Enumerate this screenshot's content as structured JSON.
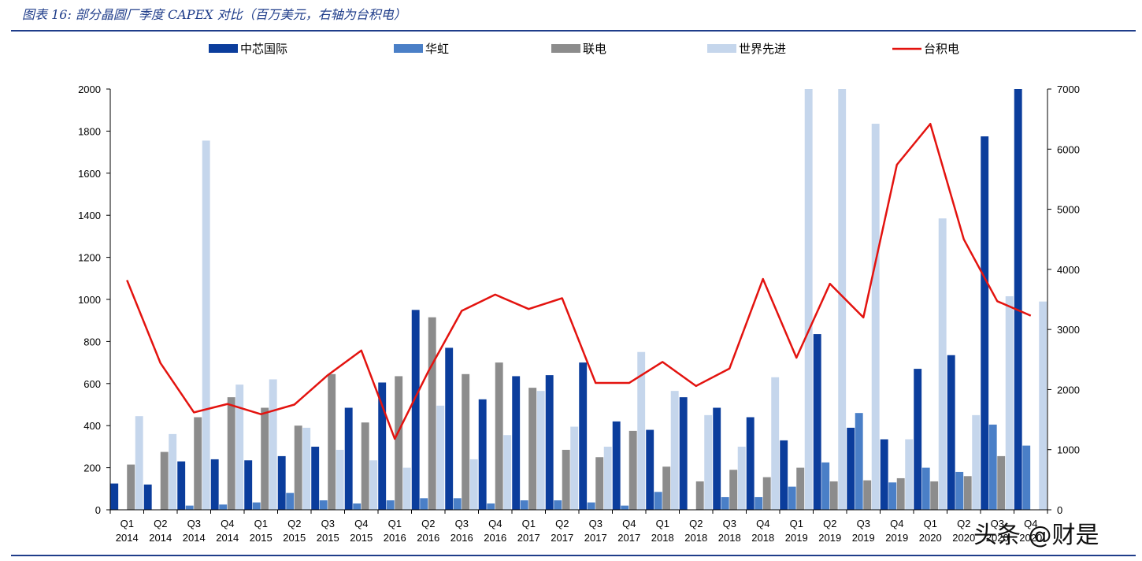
{
  "header": {
    "title": "图表 16:  部分晶圆厂季度 CAPEX 对比（百万美元，右轴为台积电）"
  },
  "watermark": "头条 @财是",
  "chart_data": {
    "type": "bar",
    "categories": [
      [
        "Q1",
        "2014"
      ],
      [
        "Q2",
        "2014"
      ],
      [
        "Q3",
        "2014"
      ],
      [
        "Q4",
        "2014"
      ],
      [
        "Q1",
        "2015"
      ],
      [
        "Q2",
        "2015"
      ],
      [
        "Q3",
        "2015"
      ],
      [
        "Q4",
        "2015"
      ],
      [
        "Q1",
        "2016"
      ],
      [
        "Q2",
        "2016"
      ],
      [
        "Q3",
        "2016"
      ],
      [
        "Q4",
        "2016"
      ],
      [
        "Q1",
        "2017"
      ],
      [
        "Q2",
        "2017"
      ],
      [
        "Q3",
        "2017"
      ],
      [
        "Q4",
        "2017"
      ],
      [
        "Q1",
        "2018"
      ],
      [
        "Q2",
        "2018"
      ],
      [
        "Q3",
        "2018"
      ],
      [
        "Q4",
        "2018"
      ],
      [
        "Q1",
        "2019"
      ],
      [
        "Q2",
        "2019"
      ],
      [
        "Q3",
        "2019"
      ],
      [
        "Q4",
        "2019"
      ],
      [
        "Q1",
        "2020"
      ],
      [
        "Q2",
        "2020"
      ],
      [
        "Q3",
        "2020"
      ],
      [
        "Q4",
        "2020"
      ]
    ],
    "ylim": [
      0,
      2000
    ],
    "yticks": [
      0,
      200,
      400,
      600,
      800,
      1000,
      1200,
      1400,
      1600,
      1800,
      2000
    ],
    "y2lim": [
      0,
      7000
    ],
    "y2ticks": [
      0,
      1000,
      2000,
      3000,
      4000,
      5000,
      6000,
      7000
    ],
    "legend_position": "top",
    "series": [
      {
        "name": "中芯国际",
        "color": "#0b3d9c",
        "axis": "left",
        "kind": "bar",
        "values": [
          125,
          120,
          230,
          240,
          235,
          255,
          300,
          485,
          605,
          950,
          770,
          525,
          635,
          640,
          700,
          420,
          380,
          535,
          485,
          440,
          330,
          835,
          390,
          335,
          670,
          735,
          1775,
          2000
        ]
      },
      {
        "name": "华虹",
        "color": "#4a7fc7",
        "axis": "left",
        "kind": "bar",
        "values": [
          0,
          0,
          20,
          25,
          35,
          80,
          45,
          30,
          45,
          55,
          55,
          30,
          45,
          45,
          35,
          20,
          85,
          0,
          60,
          60,
          110,
          225,
          460,
          130,
          200,
          180,
          405,
          305
        ]
      },
      {
        "name": "联电",
        "color": "#8c8c8c",
        "axis": "left",
        "kind": "bar",
        "values": [
          215,
          275,
          440,
          535,
          485,
          400,
          645,
          415,
          635,
          915,
          645,
          700,
          580,
          285,
          250,
          375,
          205,
          135,
          190,
          155,
          200,
          135,
          140,
          150,
          135,
          160,
          255,
          0
        ]
      },
      {
        "name": "世界先进",
        "color": "#c5d6ec",
        "axis": "left",
        "kind": "bar",
        "values": [
          445,
          360,
          1755,
          595,
          620,
          390,
          285,
          235,
          200,
          495,
          240,
          355,
          565,
          395,
          300,
          750,
          565,
          450,
          300,
          630,
          2000,
          2000,
          1835,
          335,
          1385,
          450,
          1015,
          990
        ]
      },
      {
        "name": "台积电",
        "color": "#e3130f",
        "axis": "right",
        "kind": "line",
        "values": [
          3820,
          2440,
          1620,
          1760,
          1590,
          1750,
          2240,
          2650,
          1180,
          2300,
          3310,
          3580,
          3340,
          3520,
          2110,
          2110,
          2460,
          2060,
          2350,
          3840,
          2530,
          3760,
          3200,
          5740,
          6420,
          4500,
          3470,
          3230
        ]
      }
    ]
  }
}
